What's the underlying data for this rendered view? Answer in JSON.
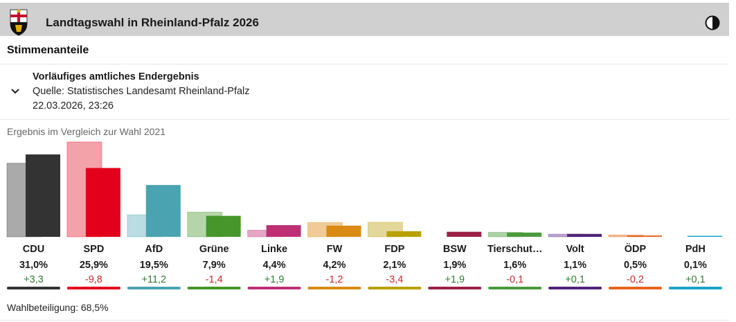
{
  "header": {
    "title": "Landtagswahl in Rheinland-Pfalz 2026",
    "crest_icon": "rlp-coat-of-arms-icon",
    "contrast_icon": "contrast-toggle-icon"
  },
  "section": {
    "title": "Stimmenanteile"
  },
  "info": {
    "status": "Vorläufiges amtliches Endergebnis",
    "source": "Quelle: Statistisches Landesamt Rheinland-Pfalz",
    "timestamp": "22.03.2026, 23:26",
    "toggle_icon": "chevron-down-icon"
  },
  "comparison_label": "Ergebnis im Vergleich zur Wahl 2021",
  "chart_data": {
    "type": "bar",
    "categories": [
      "CDU",
      "SPD",
      "AfD",
      "Grüne",
      "Linke",
      "FW",
      "FDP",
      "BSW",
      "Tierschut…",
      "Volt",
      "ÖDP",
      "PdH"
    ],
    "series": [
      {
        "values": [
          27.7,
          35.7,
          8.3,
          9.3,
          2.5,
          5.4,
          5.5,
          0.0,
          1.7,
          1.0,
          0.7,
          0.0
        ]
      },
      {
        "values": [
          31.0,
          25.9,
          19.5,
          7.9,
          4.4,
          4.2,
          2.1,
          1.9,
          1.6,
          1.1,
          0.5,
          0.1
        ]
      }
    ],
    "value_labels": [
      "31,0%",
      "25,9%",
      "19,5%",
      "7,9%",
      "4,4%",
      "4,2%",
      "2,1%",
      "1,9%",
      "1,6%",
      "1,1%",
      "0,5%",
      "0,1%"
    ],
    "diff_labels": [
      "+3,3",
      "-9,8",
      "+11,2",
      "-1,4",
      "+1,9",
      "-1,2",
      "-3,4",
      "+1,9",
      "-0,1",
      "+0,1",
      "-0,2",
      "+0,1"
    ],
    "colors": [
      "#333333",
      "#e3001b",
      "#4aa3b0",
      "#46962b",
      "#be3075",
      "#d98a13",
      "#b8a000",
      "#9b2046",
      "#4a9a3c",
      "#502379",
      "#e8641e",
      "#1ba3c8"
    ],
    "colors_prev": [
      "#aaaaaa",
      "#f4a2aa",
      "#b9dde2",
      "#b5d5a9",
      "#e4a6c4",
      "#f0cb96",
      "#e3d899",
      "#d2a3b3",
      "#add0a5",
      "#bba6cf",
      "#f4b88f",
      "#a3d8e9"
    ],
    "diff_colors": {
      "positive": "#2e7d32",
      "negative": "#c62828"
    },
    "ylim": [
      0,
      37
    ]
  },
  "footer": {
    "turnout": "Wahlbeteiligung: 68,5%"
  }
}
